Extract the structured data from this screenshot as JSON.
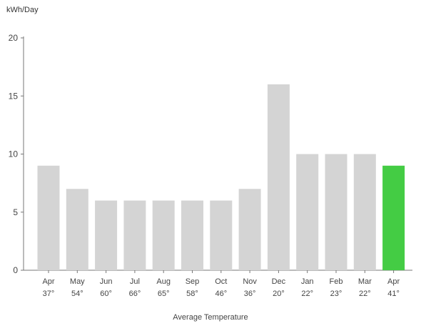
{
  "chart_data": {
    "type": "bar",
    "ylabel": "kWh/Day",
    "xlabel": "Average Temperature",
    "ylim": [
      0,
      20
    ],
    "yticks": [
      0,
      5,
      10,
      15,
      20
    ],
    "categories": [
      "Apr",
      "May",
      "Jun",
      "Jul",
      "Aug",
      "Sep",
      "Oct",
      "Nov",
      "Dec",
      "Jan",
      "Feb",
      "Mar",
      "Apr"
    ],
    "temperatures": [
      "37°",
      "54°",
      "60°",
      "66°",
      "65°",
      "58°",
      "46°",
      "36°",
      "20°",
      "22°",
      "23°",
      "22°",
      "41°"
    ],
    "values": [
      9,
      7,
      6,
      6,
      6,
      6,
      6,
      7,
      16,
      10,
      10,
      10,
      9
    ],
    "highlight_index": 12,
    "colors": {
      "bar": "#d4d4d4",
      "highlight": "#44cc44",
      "axis": "#777777",
      "text": "#444444"
    }
  }
}
